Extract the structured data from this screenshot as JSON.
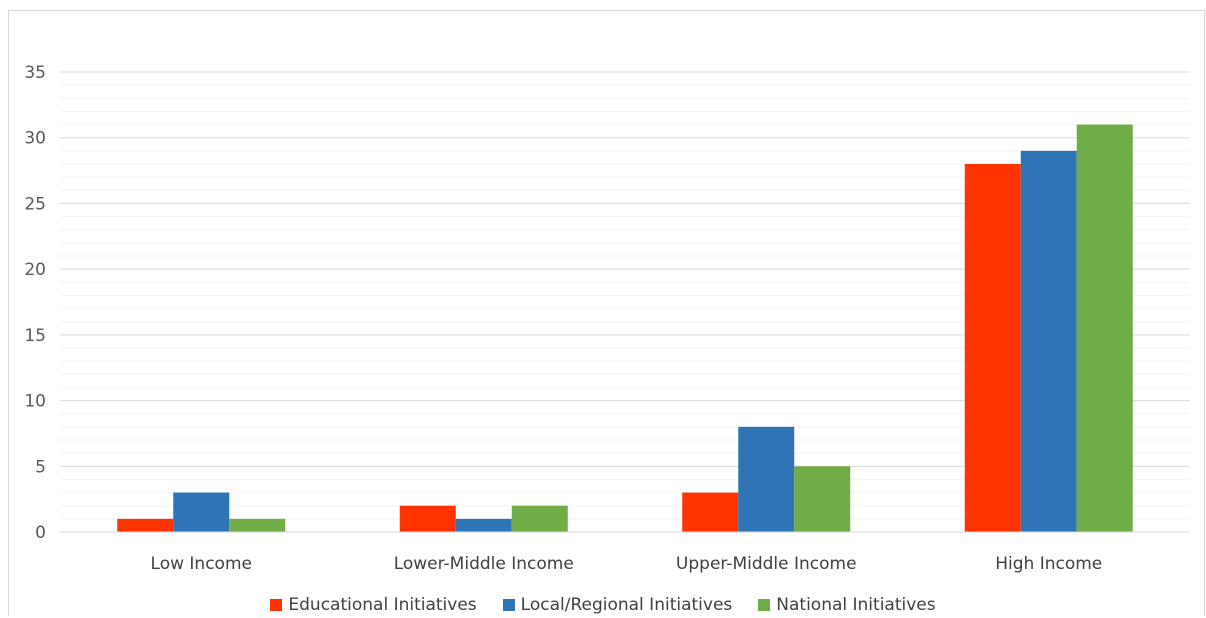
{
  "chart_data": {
    "type": "bar",
    "title": "",
    "xlabel": "",
    "ylabel": "",
    "categories": [
      "Low Income",
      "Lower-Middle Income",
      "Upper-Middle Income",
      "High Income"
    ],
    "series": [
      {
        "name": "Educational Initiatives",
        "values": [
          1,
          2,
          3,
          28
        ],
        "color": "#ff3300"
      },
      {
        "name": "Local/Regional Initiatives",
        "values": [
          3,
          1,
          8,
          29
        ],
        "color": "#2e75b6"
      },
      {
        "name": "National Initiatives",
        "values": [
          1,
          2,
          5,
          31
        ],
        "color": "#70ad47"
      }
    ],
    "ylim": [
      0,
      35
    ],
    "yticks": [
      "0",
      "5",
      "10",
      "15",
      "20",
      "25",
      "30",
      "35"
    ],
    "grid": true,
    "minor_grid": true,
    "legend_position": "bottom"
  }
}
